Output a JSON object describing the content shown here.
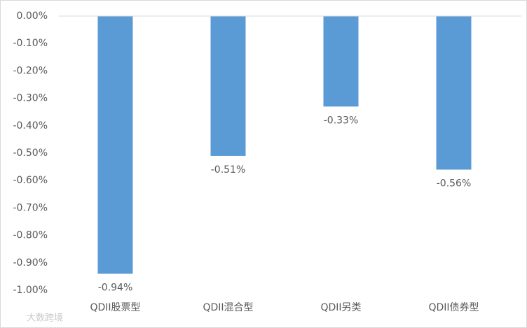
{
  "chart_data": {
    "type": "bar",
    "categories": [
      "QDII股票型",
      "QDII混合型",
      "QDII另类",
      "QDII债券型"
    ],
    "values": [
      -0.94,
      -0.51,
      -0.33,
      -0.56
    ],
    "value_labels": [
      "-0.94%",
      "-0.51%",
      "-0.33%",
      "-0.56%"
    ],
    "color": "#5b9bd5",
    "ylim": [
      -1,
      0
    ],
    "yticks": [
      {
        "value": 0,
        "label": "0.00%"
      },
      {
        "value": -0.1,
        "label": "-0.10%"
      },
      {
        "value": -0.2,
        "label": "-0.20%"
      },
      {
        "value": -0.3,
        "label": "-0.30%"
      },
      {
        "value": -0.4,
        "label": "-0.40%"
      },
      {
        "value": -0.5,
        "label": "-0.50%"
      },
      {
        "value": -0.6,
        "label": "-0.60%"
      },
      {
        "value": -0.7,
        "label": "-0.70%"
      },
      {
        "value": -0.8,
        "label": "-0.80%"
      },
      {
        "value": -0.9,
        "label": "-0.90%"
      },
      {
        "value": -1,
        "label": "-1.00%"
      }
    ],
    "grid": false,
    "watermark": "大数跨境"
  }
}
